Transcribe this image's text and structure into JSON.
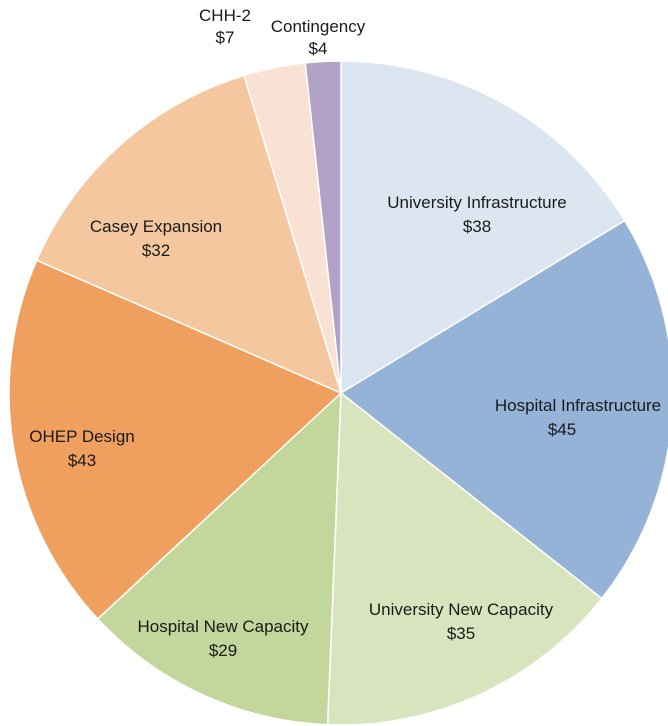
{
  "chart_data": {
    "type": "pie",
    "title": "",
    "slices": [
      {
        "label": "University Infrastructure",
        "value_label": "$38",
        "value": 38,
        "color": "#dce6f0"
      },
      {
        "label": "Hospital Infrastructure",
        "value_label": "$45",
        "value": 45,
        "color": "#95b3d7"
      },
      {
        "label": "University New Capacity",
        "value_label": "$35",
        "value": 35,
        "color": "#d7e4bd"
      },
      {
        "label": "Hospital New Capacity",
        "value_label": "$29",
        "value": 29,
        "color": "#c3d69b"
      },
      {
        "label": "OHEP Design",
        "value_label": "$43",
        "value": 43,
        "color": "#f0a05e"
      },
      {
        "label": "Casey Expansion",
        "value_label": "$32",
        "value": 32,
        "color": "#f5c79f"
      },
      {
        "label": "CHH-2",
        "value_label": "$7",
        "value": 7,
        "color": "#f9e1d3"
      },
      {
        "label": "Contingency",
        "value_label": "$4",
        "value": 4,
        "color": "#b3a2c7"
      }
    ],
    "start_angle_deg": 0,
    "direction": "clockwise",
    "labels_position": "inside-and-outside"
  }
}
